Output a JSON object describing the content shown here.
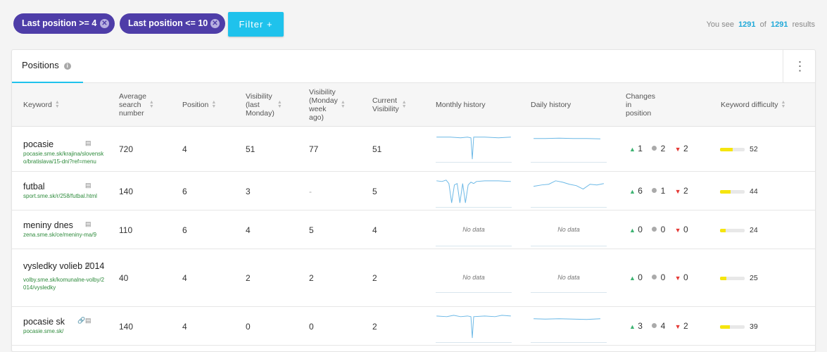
{
  "filters": [
    {
      "label": "Last position >= 4"
    },
    {
      "label": "Last position <= 10"
    }
  ],
  "filter_button": "Filter +",
  "results": {
    "prefix": "You see",
    "shown": "1291",
    "of": "of",
    "total": "1291",
    "suffix": "results"
  },
  "tab": {
    "label": "Positions"
  },
  "columns": {
    "keyword": "Keyword",
    "avg_search": [
      "Average",
      "search",
      "number"
    ],
    "position": "Position",
    "visibility_last": [
      "Visibility",
      "(last",
      "Monday)"
    ],
    "visibility_week": [
      "Visibility",
      "(Monday",
      "week",
      "ago)"
    ],
    "current_visibility": [
      "Current",
      "Visibility"
    ],
    "monthly_history": "Monthly history",
    "daily_history": "Daily history",
    "changes": [
      "Changes",
      "in",
      "position"
    ],
    "difficulty": "Keyword difficulty"
  },
  "no_data": "No data",
  "rows": [
    {
      "keyword": "pocasie",
      "url": "pocasie.sme.sk/krajina/slovensko/bratislava/15-dni?ref=menu",
      "avg": "720",
      "position": "4",
      "vis_last": "51",
      "vis_week": "77",
      "current": "51",
      "monthly": "spike",
      "daily": "flat",
      "up": "1",
      "same": "2",
      "down": "2",
      "difficulty": "52",
      "difficulty_pct": 52,
      "link_icon": false
    },
    {
      "keyword": "futbal",
      "url": "sport.sme.sk/r/258/futbal.html",
      "avg": "140",
      "position": "6",
      "vis_last": "3",
      "vis_week": "-",
      "current": "5",
      "monthly": "multi",
      "daily": "wave",
      "up": "6",
      "same": "1",
      "down": "2",
      "difficulty": "44",
      "difficulty_pct": 44,
      "link_icon": false
    },
    {
      "keyword": "meniny dnes",
      "url": "zena.sme.sk/ce/meniny-ma/9",
      "avg": "110",
      "position": "6",
      "vis_last": "4",
      "vis_week": "5",
      "current": "4",
      "monthly": "none",
      "daily": "none",
      "up": "0",
      "same": "0",
      "down": "0",
      "difficulty": "24",
      "difficulty_pct": 24,
      "link_icon": false
    },
    {
      "keyword": "vysledky volieb 2014",
      "url": "volby.sme.sk/komunalne-volby/2014/vysledky",
      "avg": "40",
      "position": "4",
      "vis_last": "2",
      "vis_week": "2",
      "current": "2",
      "monthly": "none",
      "daily": "none",
      "up": "0",
      "same": "0",
      "down": "0",
      "difficulty": "25",
      "difficulty_pct": 25,
      "link_icon": false
    },
    {
      "keyword": "pocasie sk",
      "url": "pocasie.sme.sk/",
      "avg": "140",
      "position": "4",
      "vis_last": "0",
      "vis_week": "0",
      "current": "2",
      "monthly": "spike2",
      "daily": "flat2",
      "up": "3",
      "same": "4",
      "down": "2",
      "difficulty": "39",
      "difficulty_pct": 39,
      "link_icon": true
    }
  ],
  "icons": {
    "info": "info-icon",
    "remove": "close-circle-icon",
    "menu": "kebab-menu-icon",
    "page": "page-icon",
    "link": "link-icon",
    "up": "triangle-up-icon",
    "down": "triangle-down-icon"
  },
  "colors": {
    "chip": "#4e3da8",
    "accent": "#1fc2ec",
    "url": "#2e8b3c",
    "up": "#3cb371",
    "down": "#e53935",
    "difficulty": "#f5e50f"
  }
}
